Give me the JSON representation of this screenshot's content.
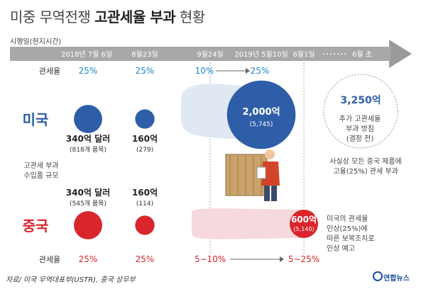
{
  "title_light": "미중 무역전쟁",
  "title_bold": "고관세율 부과",
  "title_tail": "현황",
  "timeline_label": "시행일(현지시간)",
  "dates": [
    "2018년 7월 6일",
    "8월23일",
    "9월24일",
    "2019년 5월10일",
    "6월1일",
    "6월 초"
  ],
  "row_labels": {
    "tariff_top": "관세율",
    "tariff_bottom": "관세율",
    "usa": "미국",
    "china": "중국",
    "import_scale": "고관세 부과\n수입품 규모"
  },
  "usa": {
    "tariffs": [
      "25%",
      "25%",
      "10%",
      "25%"
    ],
    "amounts": [
      "340억 달러",
      "160억",
      "2,000억"
    ],
    "items": [
      "(818개 품목)",
      "(279)",
      "(5,745)"
    ],
    "future_amount": "3,250억",
    "future_note": "추가 고관세율\n부과 방침\n(결정 전)",
    "future_note2": "사실상 모든 중국 제품에\n고율(25%) 관세 부과"
  },
  "china": {
    "tariffs": [
      "25%",
      "25%",
      "5∼10%",
      "5∼25%"
    ],
    "amounts": [
      "340억 달러",
      "160억",
      "600억"
    ],
    "items": [
      "(545개 품목)",
      "(114)",
      "(5,140)"
    ],
    "note": "미국의 관세율\n인상(25%)에\n따른 보복조치로\n인상 예고"
  },
  "source": "자료/ 미국 무역대표부(USTR), 중국 상무부",
  "brand": "연합뉴스",
  "colors": {
    "usa": "#2e5ea8",
    "usa_light": "#dfe8f3",
    "china": "#d9262c",
    "china_light": "#f6d9dc",
    "tariff_blue": "#1e88c8",
    "tariff_red": "#d9262c",
    "arrow": "#8a8a8a"
  },
  "chart_data": {
    "type": "bubble",
    "x": [
      "2018년 7월 6일",
      "8월23일",
      "9월24일",
      "2019년 5월10일",
      "6월1일",
      "6월 초"
    ],
    "series": [
      {
        "name": "미국",
        "values": [
          340,
          160,
          2000,
          null,
          null,
          3250
        ],
        "unit": "억 달러",
        "items": [
          818,
          279,
          5745,
          null,
          null,
          null
        ]
      },
      {
        "name": "중국",
        "values": [
          340,
          160,
          600,
          null,
          600,
          null
        ],
        "unit": "억 달러",
        "items": [
          545,
          114,
          5140,
          null,
          null,
          null
        ]
      }
    ],
    "tariff_rates": {
      "미국": [
        "25%",
        "25%",
        "10%",
        "25%",
        null,
        null
      ],
      "중국": [
        "25%",
        "25%",
        "5∼10%",
        null,
        "5∼25%",
        null
      ]
    }
  }
}
